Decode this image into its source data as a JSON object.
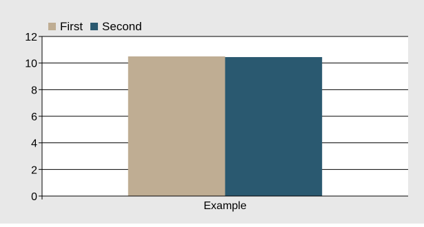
{
  "chart_data": {
    "type": "bar",
    "categories": [
      "Example"
    ],
    "series": [
      {
        "name": "First",
        "values": [
          10.5
        ],
        "color": "#bfad93"
      },
      {
        "name": "Second",
        "values": [
          10.45
        ],
        "color": "#2a5970"
      }
    ],
    "ylim": [
      0,
      12
    ],
    "yticks": [
      0,
      2,
      4,
      6,
      8,
      10,
      12
    ],
    "grid": true,
    "legend": "top-left",
    "background_color": "#e8e8e8",
    "plot_background_color": "#ffffff"
  }
}
